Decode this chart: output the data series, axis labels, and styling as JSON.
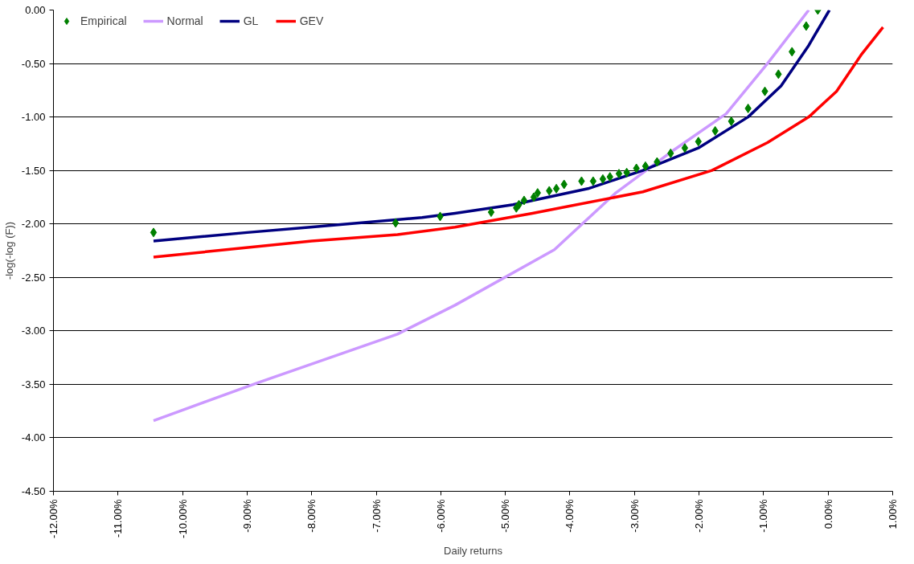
{
  "chart_data": {
    "type": "line",
    "xlabel": "Daily returns",
    "ylabel": "-log(-log (F))",
    "xlim": [
      -12,
      1
    ],
    "ylim": [
      -4.5,
      0
    ],
    "xticks": [
      {
        "value": -12,
        "label": "-12.00%"
      },
      {
        "value": -11,
        "label": "-11.00%"
      },
      {
        "value": -10,
        "label": "-10.00%"
      },
      {
        "value": -9,
        "label": "-9.00%"
      },
      {
        "value": -8,
        "label": "-8.00%"
      },
      {
        "value": -7,
        "label": "-7.00%"
      },
      {
        "value": -6,
        "label": "-6.00%"
      },
      {
        "value": -5,
        "label": "-5.00%"
      },
      {
        "value": -4,
        "label": "-4.00%"
      },
      {
        "value": -3,
        "label": "-3.00%"
      },
      {
        "value": -2,
        "label": "-2.00%"
      },
      {
        "value": -1,
        "label": "-1.00%"
      },
      {
        "value": 0,
        "label": "0.00%"
      },
      {
        "value": 1,
        "label": "1.00%"
      }
    ],
    "yticks": [
      {
        "value": -4.5,
        "label": "-4.50"
      },
      {
        "value": -4,
        "label": "-4.00"
      },
      {
        "value": -3.5,
        "label": "-3.50"
      },
      {
        "value": -3,
        "label": "-3.00"
      },
      {
        "value": -2.5,
        "label": "-2.50"
      },
      {
        "value": -2,
        "label": "-2.00"
      },
      {
        "value": -1.5,
        "label": "-1.50"
      },
      {
        "value": -1,
        "label": "-1.00"
      },
      {
        "value": -0.5,
        "label": "-0.50"
      },
      {
        "value": 0,
        "label": "0.00"
      }
    ],
    "grid": "y",
    "legend": "top left",
    "series": [
      {
        "name": "Empirical",
        "type": "scatter",
        "marker": "diamond",
        "color": "#008000",
        "x": [
          -10.45,
          -6.7,
          -6.01,
          -5.22,
          -4.83,
          -4.79,
          -4.71,
          -4.56,
          -4.5,
          -4.32,
          -4.21,
          -4.09,
          -3.82,
          -3.64,
          -3.49,
          -3.38,
          -3.24,
          -3.12,
          -2.97,
          -2.83,
          -2.65,
          -2.44,
          -2.22,
          -2.01,
          -1.75,
          -1.5,
          -1.24,
          -0.98,
          -0.77,
          -0.56,
          -0.34,
          -0.16
        ],
        "values": [
          -2.08,
          -1.99,
          -1.93,
          -1.89,
          -1.85,
          -1.82,
          -1.78,
          -1.75,
          -1.71,
          -1.69,
          -1.67,
          -1.63,
          -1.6,
          -1.6,
          -1.58,
          -1.56,
          -1.53,
          -1.52,
          -1.48,
          -1.46,
          -1.42,
          -1.34,
          -1.29,
          -1.23,
          -1.13,
          -1.04,
          -0.92,
          -0.76,
          -0.6,
          -0.39,
          -0.15,
          0.0
        ]
      },
      {
        "name": "Normal",
        "color": "#cc99ff",
        "x": [
          -10.45,
          -8.86,
          -6.67,
          -5.78,
          -4.24,
          -3.29,
          -2.44,
          -1.58,
          -0.94,
          -0.3
        ],
        "values": [
          -3.84,
          -3.49,
          -3.03,
          -2.76,
          -2.24,
          -1.71,
          -1.33,
          -0.97,
          -0.5,
          0.0
        ]
      },
      {
        "name": "GL",
        "color": "#000080",
        "x": [
          -10.45,
          -9.0,
          -8.02,
          -6.29,
          -5.78,
          -4.88,
          -3.72,
          -2.87,
          -2.01,
          -1.24,
          -0.73,
          -0.3,
          0.02
        ],
        "values": [
          -2.16,
          -2.08,
          -2.03,
          -1.94,
          -1.9,
          -1.82,
          -1.67,
          -1.5,
          -1.29,
          -1.0,
          -0.71,
          -0.33,
          0.0
        ]
      },
      {
        "name": "GEV",
        "color": "#ff0000",
        "x": [
          -10.45,
          -8.0,
          -6.67,
          -5.78,
          -4.58,
          -2.87,
          -1.8,
          -0.94,
          -0.3,
          0.13,
          0.51,
          0.85
        ],
        "values": [
          -2.31,
          -2.16,
          -2.1,
          -2.03,
          -1.9,
          -1.7,
          -1.5,
          -1.24,
          -1.0,
          -0.76,
          -0.42,
          -0.16
        ]
      }
    ]
  }
}
